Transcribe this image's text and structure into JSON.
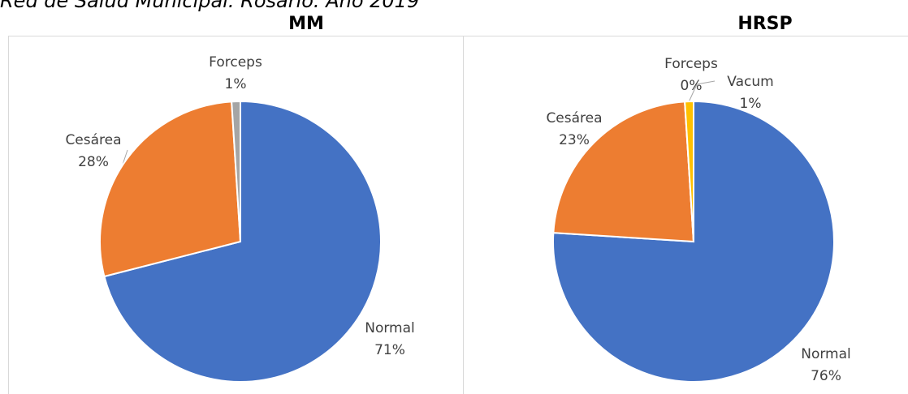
{
  "header": {
    "text": "Red de Salud Municipal. Rosario. Año 2019"
  },
  "chart_data": [
    {
      "type": "pie",
      "title": "MM",
      "categories": [
        "Normal",
        "Cesárea",
        "Forceps"
      ],
      "values": [
        71,
        28,
        1
      ],
      "value_labels": [
        "71%",
        "28%",
        "1%"
      ],
      "colors": [
        "#4472c4",
        "#ed7d31",
        "#a5a5a5"
      ]
    },
    {
      "type": "pie",
      "title": "HRSP",
      "categories": [
        "Normal",
        "Cesárea",
        "Forceps",
        "Vacum"
      ],
      "values": [
        76,
        23,
        0,
        1
      ],
      "value_labels": [
        "76%",
        "23%",
        "0%",
        "1%"
      ],
      "colors": [
        "#4472c4",
        "#ed7d31",
        "#a5a5a5",
        "#ffc000"
      ]
    }
  ]
}
